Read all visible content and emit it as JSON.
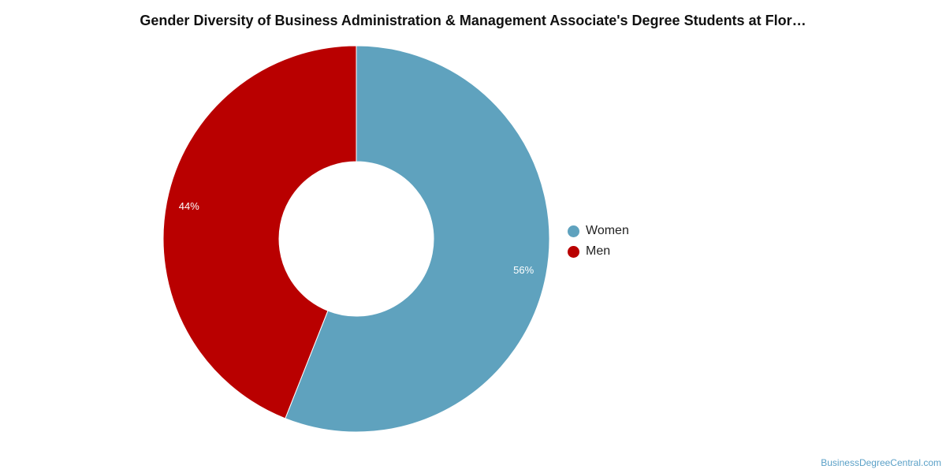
{
  "chart_data": {
    "type": "pie",
    "title": "Gender Diversity of Business Administration & Management Associate's Degree Students at Flor…",
    "categories": [
      "Women",
      "Men"
    ],
    "values": [
      56,
      44
    ],
    "value_labels": [
      "56%",
      "44%"
    ],
    "colors": [
      "#5fa2be",
      "#b90000"
    ],
    "donut": true,
    "legend_position": "right"
  },
  "watermark": "BusinessDegreeCentral.com"
}
